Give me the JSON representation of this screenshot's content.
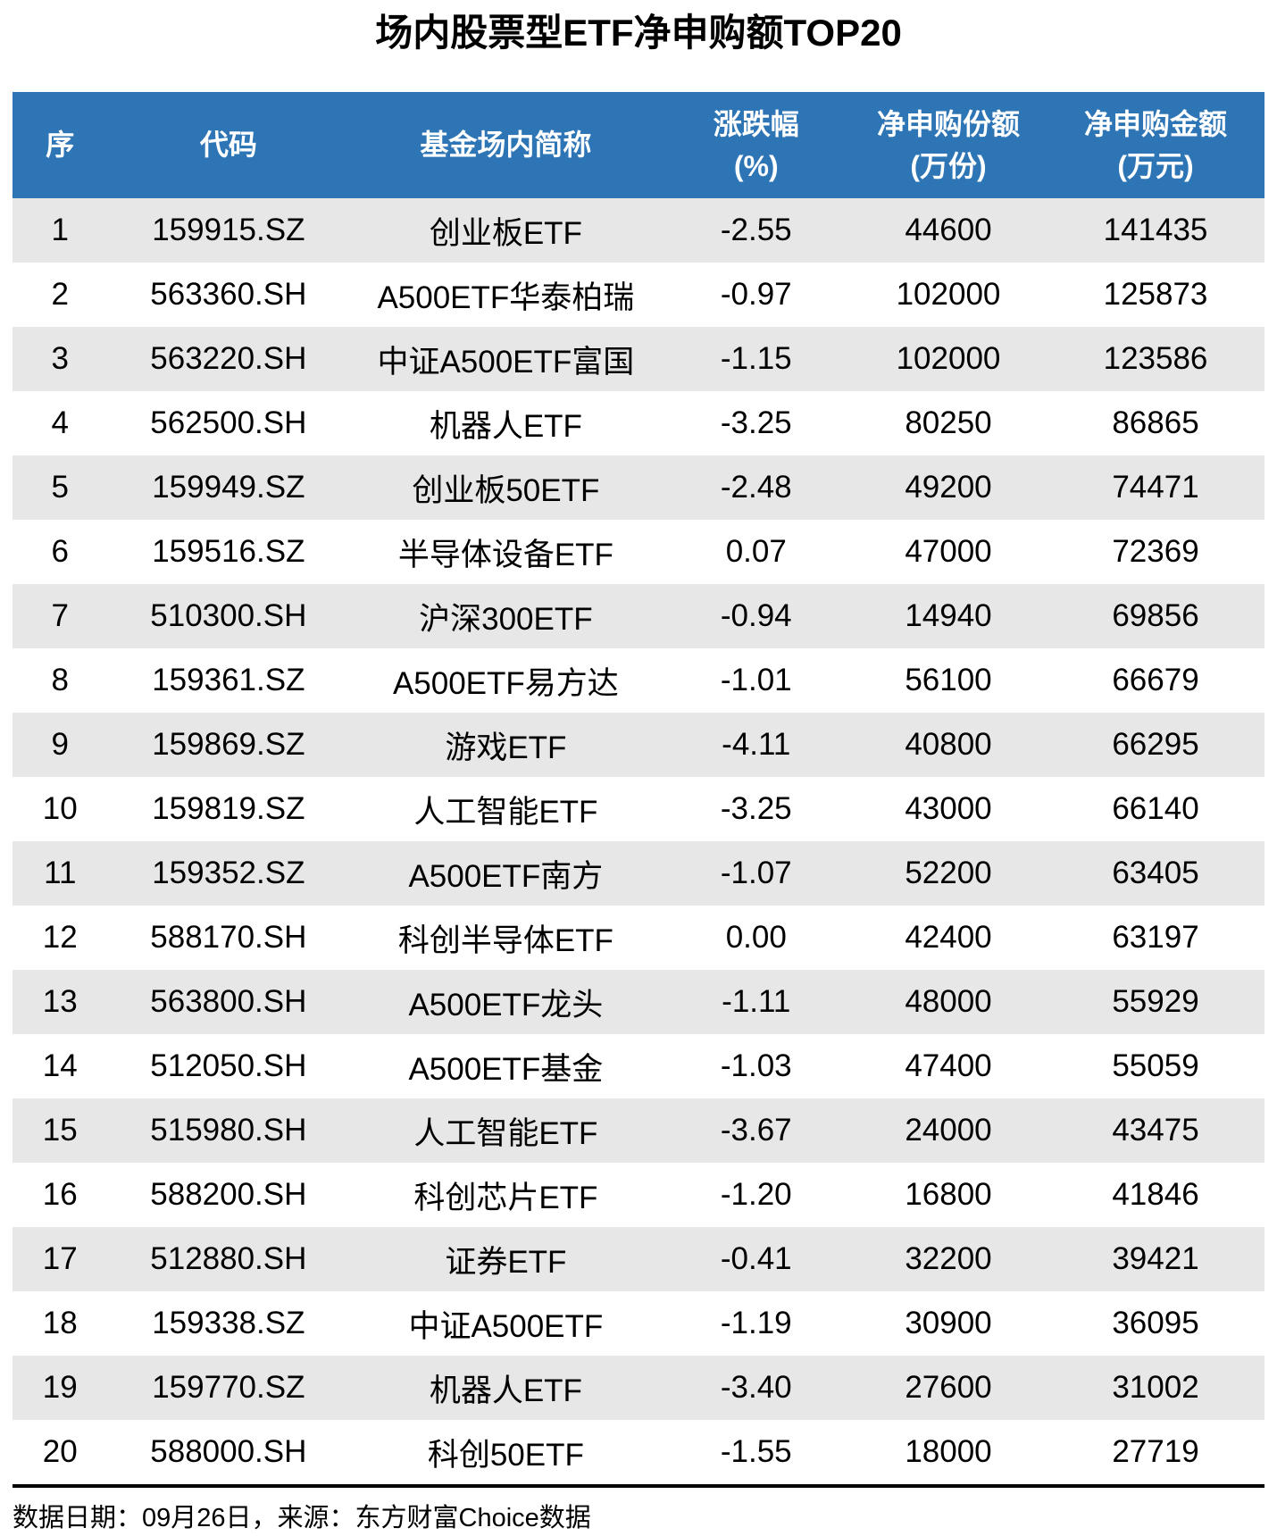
{
  "title": "场内股票型ETF净申购额TOP20",
  "colors": {
    "header_bg": "#2E75B6",
    "header_text": "#FFFFFF",
    "stripe_bg": "#E7E7E7",
    "row_bg": "#FFFFFF",
    "text": "#000000",
    "divider": "#000000"
  },
  "table": {
    "columns": [
      {
        "label": "序",
        "unit": ""
      },
      {
        "label": "代码",
        "unit": ""
      },
      {
        "label": "基金场内简称",
        "unit": ""
      },
      {
        "label": "涨跌幅",
        "unit": "(%)"
      },
      {
        "label": "净申购份额",
        "unit": "(万份)"
      },
      {
        "label": "净申购金额",
        "unit": "(万元)"
      }
    ],
    "row_keys": [
      "rank",
      "code",
      "name",
      "change",
      "shares",
      "amount"
    ],
    "rows": [
      {
        "rank": "1",
        "code": "159915.SZ",
        "name": "创业板ETF",
        "change": "-2.55",
        "shares": "44600",
        "amount": "141435"
      },
      {
        "rank": "2",
        "code": "563360.SH",
        "name": "A500ETF华泰柏瑞",
        "change": "-0.97",
        "shares": "102000",
        "amount": "125873"
      },
      {
        "rank": "3",
        "code": "563220.SH",
        "name": "中证A500ETF富国",
        "change": "-1.15",
        "shares": "102000",
        "amount": "123586"
      },
      {
        "rank": "4",
        "code": "562500.SH",
        "name": "机器人ETF",
        "change": "-3.25",
        "shares": "80250",
        "amount": "86865"
      },
      {
        "rank": "5",
        "code": "159949.SZ",
        "name": "创业板50ETF",
        "change": "-2.48",
        "shares": "49200",
        "amount": "74471"
      },
      {
        "rank": "6",
        "code": "159516.SZ",
        "name": "半导体设备ETF",
        "change": "0.07",
        "shares": "47000",
        "amount": "72369"
      },
      {
        "rank": "7",
        "code": "510300.SH",
        "name": "沪深300ETF",
        "change": "-0.94",
        "shares": "14940",
        "amount": "69856"
      },
      {
        "rank": "8",
        "code": "159361.SZ",
        "name": "A500ETF易方达",
        "change": "-1.01",
        "shares": "56100",
        "amount": "66679"
      },
      {
        "rank": "9",
        "code": "159869.SZ",
        "name": "游戏ETF",
        "change": "-4.11",
        "shares": "40800",
        "amount": "66295"
      },
      {
        "rank": "10",
        "code": "159819.SZ",
        "name": "人工智能ETF",
        "change": "-3.25",
        "shares": "43000",
        "amount": "66140"
      },
      {
        "rank": "11",
        "code": "159352.SZ",
        "name": "A500ETF南方",
        "change": "-1.07",
        "shares": "52200",
        "amount": "63405"
      },
      {
        "rank": "12",
        "code": "588170.SH",
        "name": "科创半导体ETF",
        "change": "0.00",
        "shares": "42400",
        "amount": "63197"
      },
      {
        "rank": "13",
        "code": "563800.SH",
        "name": "A500ETF龙头",
        "change": "-1.11",
        "shares": "48000",
        "amount": "55929"
      },
      {
        "rank": "14",
        "code": "512050.SH",
        "name": "A500ETF基金",
        "change": "-1.03",
        "shares": "47400",
        "amount": "55059"
      },
      {
        "rank": "15",
        "code": "515980.SH",
        "name": "人工智能ETF",
        "change": "-3.67",
        "shares": "24000",
        "amount": "43475"
      },
      {
        "rank": "16",
        "code": "588200.SH",
        "name": "科创芯片ETF",
        "change": "-1.20",
        "shares": "16800",
        "amount": "41846"
      },
      {
        "rank": "17",
        "code": "512880.SH",
        "name": "证券ETF",
        "change": "-0.41",
        "shares": "32200",
        "amount": "39421"
      },
      {
        "rank": "18",
        "code": "159338.SZ",
        "name": "中证A500ETF",
        "change": "-1.19",
        "shares": "30900",
        "amount": "36095"
      },
      {
        "rank": "19",
        "code": "159770.SZ",
        "name": "机器人ETF",
        "change": "-3.40",
        "shares": "27600",
        "amount": "31002"
      },
      {
        "rank": "20",
        "code": "588000.SH",
        "name": "科创50ETF",
        "change": "-1.55",
        "shares": "18000",
        "amount": "27719"
      }
    ]
  },
  "footer": {
    "text": "数据日期：09月26日，来源：东方财富Choice数据"
  },
  "chart_data": {
    "type": "table",
    "title": "场内股票型ETF净申购额TOP20",
    "columns": [
      "序",
      "代码",
      "基金场内简称",
      "涨跌幅(%)",
      "净申购份额(万份)",
      "净申购金额(万元)"
    ],
    "rows": [
      [
        1,
        "159915.SZ",
        "创业板ETF",
        -2.55,
        44600,
        141435
      ],
      [
        2,
        "563360.SH",
        "A500ETF华泰柏瑞",
        -0.97,
        102000,
        125873
      ],
      [
        3,
        "563220.SH",
        "中证A500ETF富国",
        -1.15,
        102000,
        123586
      ],
      [
        4,
        "562500.SH",
        "机器人ETF",
        -3.25,
        80250,
        86865
      ],
      [
        5,
        "159949.SZ",
        "创业板50ETF",
        -2.48,
        49200,
        74471
      ],
      [
        6,
        "159516.SZ",
        "半导体设备ETF",
        0.07,
        47000,
        72369
      ],
      [
        7,
        "510300.SH",
        "沪深300ETF",
        -0.94,
        14940,
        69856
      ],
      [
        8,
        "159361.SZ",
        "A500ETF易方达",
        -1.01,
        56100,
        66679
      ],
      [
        9,
        "159869.SZ",
        "游戏ETF",
        -4.11,
        40800,
        66295
      ],
      [
        10,
        "159819.SZ",
        "人工智能ETF",
        -3.25,
        43000,
        66140
      ],
      [
        11,
        "159352.SZ",
        "A500ETF南方",
        -1.07,
        52200,
        63405
      ],
      [
        12,
        "588170.SH",
        "科创半导体ETF",
        0.0,
        42400,
        63197
      ],
      [
        13,
        "563800.SH",
        "A500ETF龙头",
        -1.11,
        48000,
        55929
      ],
      [
        14,
        "512050.SH",
        "A500ETF基金",
        -1.03,
        47400,
        55059
      ],
      [
        15,
        "515980.SH",
        "人工智能ETF",
        -3.67,
        24000,
        43475
      ],
      [
        16,
        "588200.SH",
        "科创芯片ETF",
        -1.2,
        16800,
        41846
      ],
      [
        17,
        "512880.SH",
        "证券ETF",
        -0.41,
        32200,
        39421
      ],
      [
        18,
        "159338.SZ",
        "中证A500ETF",
        -1.19,
        30900,
        36095
      ],
      [
        19,
        "159770.SZ",
        "机器人ETF",
        -3.4,
        27600,
        31002
      ],
      [
        20,
        "588000.SH",
        "科创50ETF",
        -1.55,
        18000,
        27719
      ]
    ],
    "source_note": "数据日期：09月26日，来源：东方财富Choice数据"
  }
}
